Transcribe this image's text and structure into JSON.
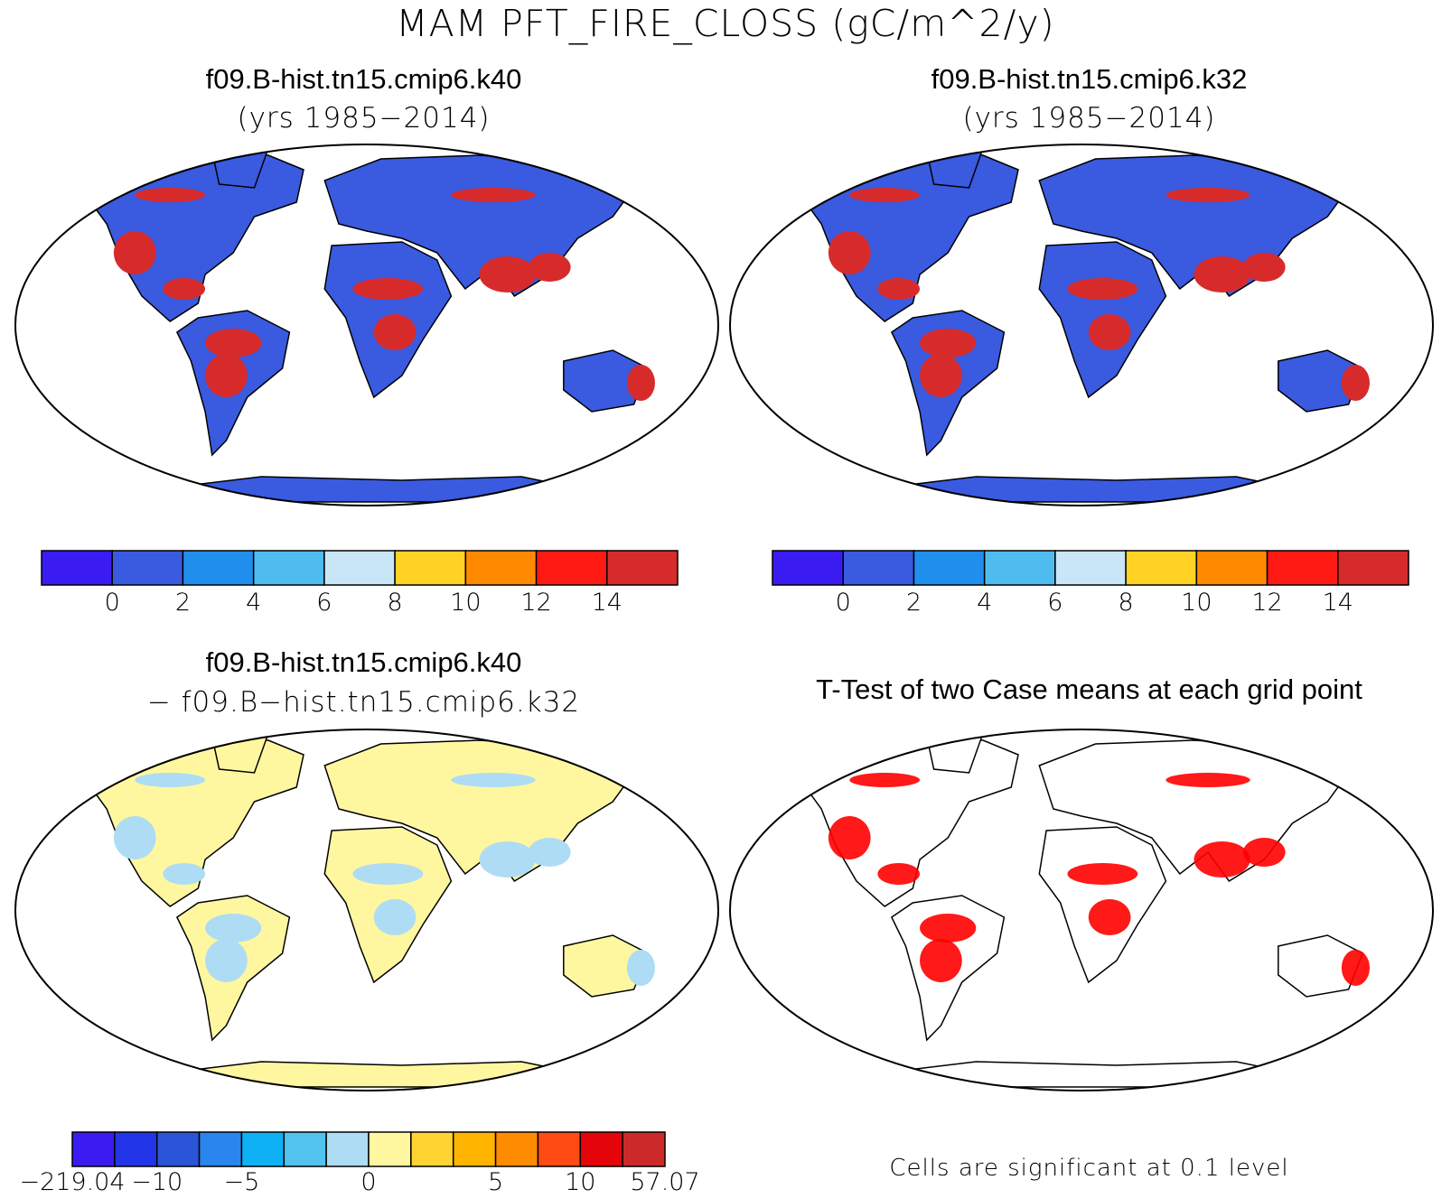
{
  "figure": {
    "title": "MAM PFT_FIRE_CLOSS (gC/m^2/y)"
  },
  "panels": [
    {
      "id": "k40",
      "title": "f09.B-hist.tn15.cmip6.k40",
      "subtitle": "(yrs 1985−2014)",
      "colorbar": {
        "colors": [
          "#3a1cf2",
          "#3a5ae0",
          "#1f8eec",
          "#4fbcf0",
          "#c9e6f6",
          "#ffd224",
          "#ff8a00",
          "#fe1912",
          "#d72b2b"
        ],
        "ticks": [
          "0",
          "2",
          "4",
          "6",
          "8",
          "10",
          "12",
          "14"
        ]
      }
    },
    {
      "id": "k32",
      "title": "f09.B-hist.tn15.cmip6.k32",
      "subtitle": "(yrs 1985−2014)",
      "colorbar": {
        "colors": [
          "#3a1cf2",
          "#3a5ae0",
          "#1f8eec",
          "#4fbcf0",
          "#c9e6f6",
          "#ffd224",
          "#ff8a00",
          "#fe1912",
          "#d72b2b"
        ],
        "ticks": [
          "0",
          "2",
          "4",
          "6",
          "8",
          "10",
          "12",
          "14"
        ]
      }
    },
    {
      "id": "diff",
      "title": "f09.B-hist.tn15.cmip6.k40",
      "subtitle": "− f09.B−hist.tn15.cmip6.k32",
      "colorbar": {
        "colors": [
          "#3a1cf2",
          "#2335e8",
          "#2a55d8",
          "#2a86ec",
          "#0eb2f4",
          "#52c2ee",
          "#aedcf4",
          "#fff7a0",
          "#ffd432",
          "#ffb400",
          "#ff8c00",
          "#ff4a14",
          "#e4050a",
          "#cc2a2a"
        ],
        "ticks": [
          "−219.04",
          "−10",
          "−5",
          "0",
          "5",
          "10",
          "57.07"
        ]
      }
    },
    {
      "id": "ttest",
      "title": "T-Test of two Case means at each grid point",
      "note": "Cells are significant at 0.1 level"
    }
  ],
  "colors": {
    "ocean": "#ffffff",
    "land_base_abs": "#3a5ae0",
    "land_base_diff": "#fff7a0",
    "ttest_sig": "#ff0000",
    "outline": "#000000"
  }
}
